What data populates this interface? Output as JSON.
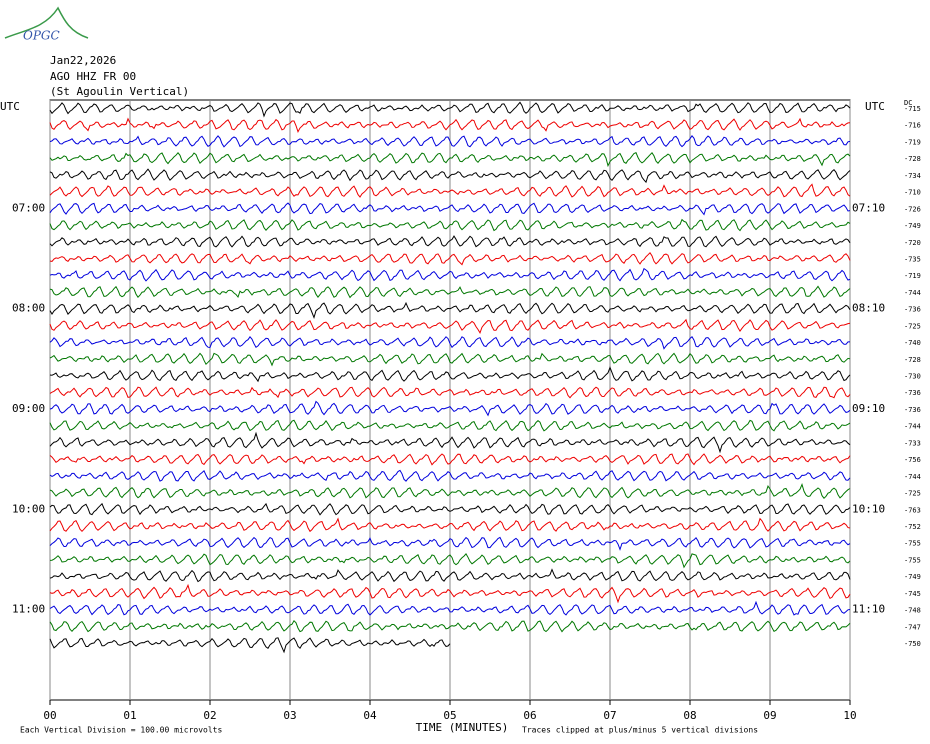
{
  "logo": "OPGC",
  "header": {
    "date": "Jan22,2026",
    "station": "AGO HHZ FR 00",
    "name": "(St Agoulin Vertical)"
  },
  "left_axis": {
    "title": "UTC",
    "labels": [
      "07:00",
      "08:00",
      "09:00",
      "10:00",
      "11:00"
    ]
  },
  "right_axis": {
    "title": "UTC",
    "labels": [
      "07:10",
      "08:10",
      "09:10",
      "10:10",
      "11:10"
    ],
    "dc_title": "DC",
    "dc_values": [
      -715,
      -716,
      -719,
      -728,
      -734,
      -710,
      -726,
      -749,
      -720,
      -735,
      -719,
      -744,
      -736,
      -725,
      -740,
      -728,
      -730,
      -736,
      -736,
      -744,
      -733,
      -756,
      -744,
      -725,
      -763,
      -752,
      -755,
      -755,
      -749,
      -745,
      -748,
      -747,
      -750
    ]
  },
  "x_axis": {
    "title": "TIME (MINUTES)",
    "ticks": [
      "00",
      "01",
      "02",
      "03",
      "04",
      "05",
      "06",
      "07",
      "08",
      "09",
      "10"
    ]
  },
  "footer": {
    "scale": "Each Vertical Division =  100.00 microvolts",
    "clip": "Traces clipped at plus/minus 5 vertical divisions"
  }
}
